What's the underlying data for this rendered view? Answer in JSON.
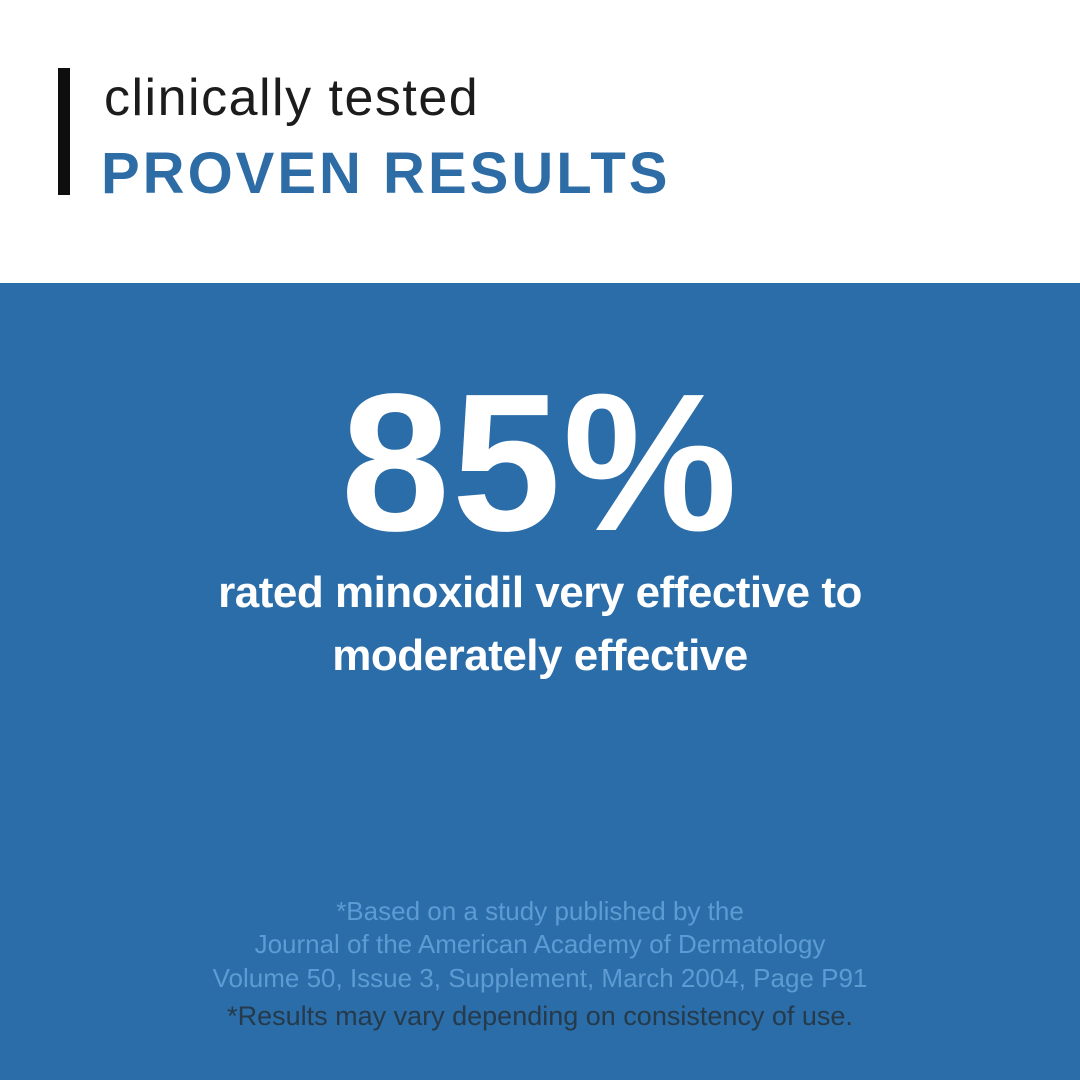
{
  "header": {
    "eyebrow": "clinically tested",
    "title": "PROVEN RESULTS"
  },
  "panel": {
    "stat_value": "85%",
    "stat_description_line1": "rated minoxidil very effective to",
    "stat_description_line2": "moderately effective",
    "citation_lines": [
      "*Based on a study published by the",
      "Journal of the American Academy of Dermatology",
      "Volume 50, Issue 3, Supplement, March 2004, Page P91"
    ],
    "disclaimer": "*Results may vary depending on consistency of use."
  },
  "colors": {
    "page_bg": "#ffffff",
    "panel_blue": "#2b6da8",
    "title_blue": "#2e6ca6",
    "citation_blue": "#5d9cd3",
    "disclaimer_dark": "#253a4b",
    "eyebrow_black": "#1c1c1c",
    "bar_black": "#0e0e0e",
    "white": "#ffffff"
  }
}
